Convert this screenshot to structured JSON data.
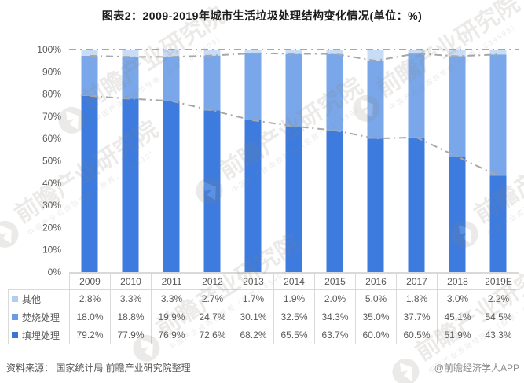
{
  "title": "图表2：2009-2019年城市生活垃圾处理结构变化情况(单位：%)",
  "source_note": "资料来源： 国家统计局 前瞻产业研究院整理",
  "credit": "@前瞻经济学人APP",
  "watermark": {
    "brand": "前瞻产业研究院",
    "sub": "中国产业咨询领导者（股票：839599）"
  },
  "colors": {
    "landfill_bar": "#3D7BDE",
    "incineration_bar": "#7AA7E9",
    "other_bar": "#C8DCF6",
    "trend_line": "#A8A8A8",
    "axis_text": "#595959",
    "table_border": "#D9D9D9",
    "table_text": "#595959"
  },
  "chart_data": {
    "type": "bar",
    "stacked": true,
    "unit": "%",
    "title": "图表2：2009-2019年城市生活垃圾处理结构变化情况(单位：%)",
    "xlabel": "",
    "ylabel": "",
    "ylim": [
      0,
      100
    ],
    "grid": false,
    "legend_position": "table-left",
    "categories": [
      "2009",
      "2010",
      "2011",
      "2012",
      "2013",
      "2014",
      "2015",
      "2016",
      "2017",
      "2018",
      "2019E"
    ],
    "y_ticks": [
      "0%",
      "10%",
      "20%",
      "30%",
      "40%",
      "50%",
      "60%",
      "70%",
      "80%",
      "90%",
      "100%"
    ],
    "series": [
      {
        "name": "填埋处理",
        "color": "#3D7BDE",
        "legend_color": "#3B73D6",
        "values": [
          79.2,
          77.9,
          76.9,
          72.6,
          68.2,
          65.5,
          63.7,
          60.0,
          60.5,
          51.9,
          43.3
        ]
      },
      {
        "name": "焚烧处理",
        "color": "#7AA7E9",
        "legend_color": "#6C9BE3",
        "values": [
          18.0,
          18.8,
          19.9,
          24.7,
          30.1,
          32.5,
          34.3,
          35.0,
          37.7,
          45.1,
          54.5
        ]
      },
      {
        "name": "其他",
        "color": "#C8DCF6",
        "legend_color": "#B3CDEF",
        "values": [
          2.8,
          3.3,
          3.3,
          2.7,
          1.7,
          1.9,
          2.0,
          5.0,
          1.8,
          3.0,
          2.2
        ]
      }
    ],
    "overlay_lines": [
      {
        "name": "合计100%基准线",
        "full_width": true,
        "values": [
          100,
          100,
          100,
          100,
          100,
          100,
          100,
          100,
          100,
          100,
          100
        ]
      },
      {
        "name": "填埋+焚烧累计占比",
        "full_width": false,
        "values": [
          97.2,
          96.7,
          96.7,
          97.3,
          98.3,
          98.1,
          98.0,
          95.0,
          98.2,
          97.0,
          97.8
        ]
      },
      {
        "name": "填埋处理占比趋势",
        "full_width": false,
        "values": [
          79.2,
          77.9,
          76.9,
          72.6,
          68.2,
          65.5,
          63.7,
          60.0,
          60.5,
          51.9,
          43.3
        ]
      }
    ]
  },
  "table": {
    "header": [
      "",
      "2009",
      "2010",
      "2011",
      "2012",
      "2013",
      "2014",
      "2015",
      "2016",
      "2017",
      "2018",
      "2019E"
    ],
    "rows": [
      {
        "label": "其他",
        "color": "#B3CDEF",
        "values": [
          "2.8%",
          "3.3%",
          "3.3%",
          "2.7%",
          "1.7%",
          "1.9%",
          "2.0%",
          "5.0%",
          "1.8%",
          "3.0%",
          "2.2%"
        ]
      },
      {
        "label": "焚烧处理",
        "color": "#6C9BE3",
        "values": [
          "18.0%",
          "18.8%",
          "19.9%",
          "24.7%",
          "30.1%",
          "32.5%",
          "34.3%",
          "35.0%",
          "37.7%",
          "45.1%",
          "54.5%"
        ]
      },
      {
        "label": "填埋处理",
        "color": "#3B73D6",
        "values": [
          "79.2%",
          "77.9%",
          "76.9%",
          "72.6%",
          "68.2%",
          "65.5%",
          "63.7%",
          "60.0%",
          "60.5%",
          "51.9%",
          "43.3%"
        ]
      }
    ]
  }
}
